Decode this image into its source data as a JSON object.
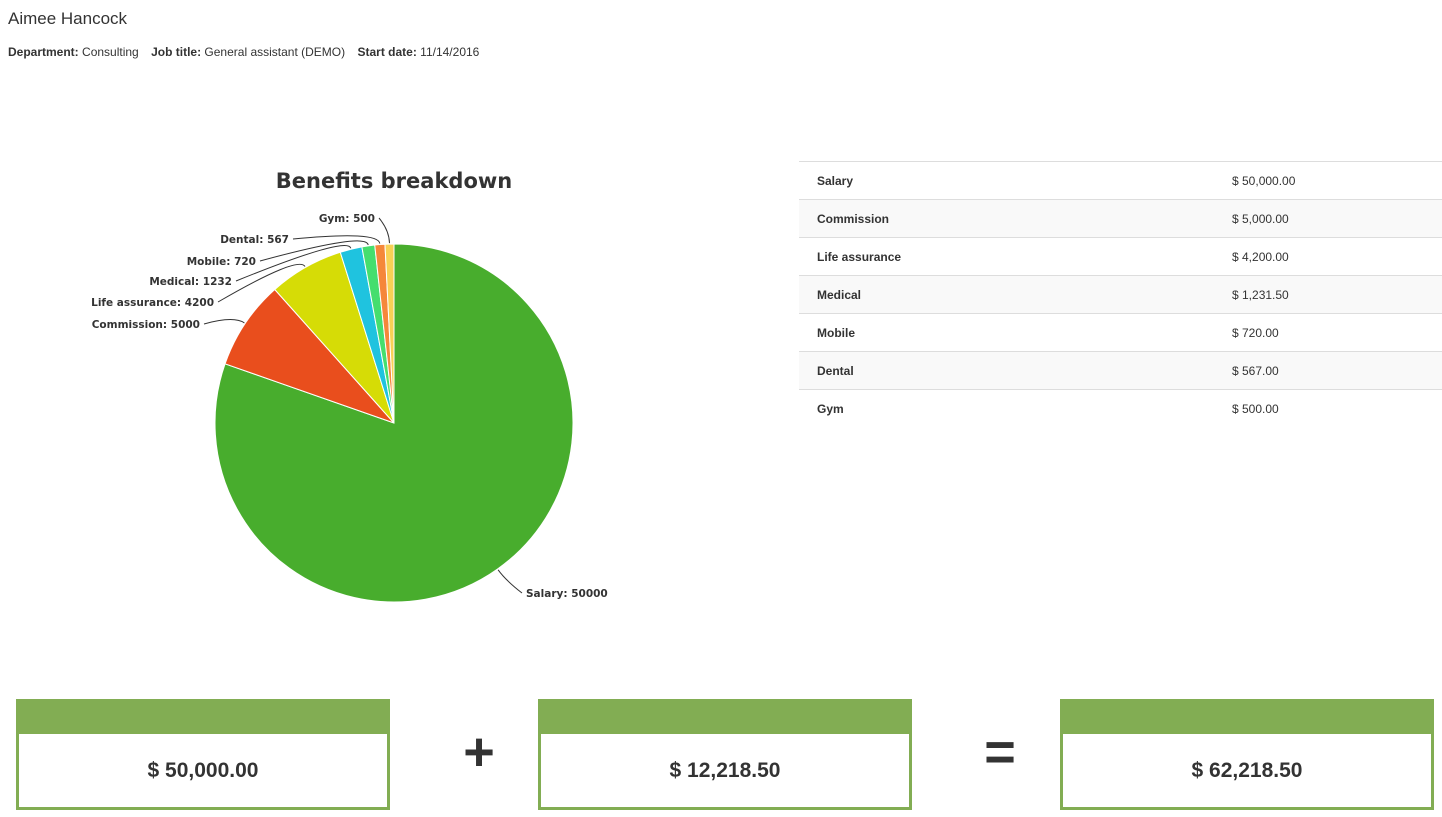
{
  "employee": {
    "name": "Aimee Hancock",
    "department_label": "Department:",
    "department": "Consulting",
    "job_title_label": "Job title:",
    "job_title": "General assistant (DEMO)",
    "start_date_label": "Start date:",
    "start_date": "11/14/2016"
  },
  "chart_data": {
    "type": "pie",
    "title": "Benefits breakdown",
    "legend": "none",
    "slices": [
      {
        "label": "Salary: 50000",
        "value": 50000,
        "color": "#48ad2d"
      },
      {
        "label": "Commission: 5000",
        "value": 5000,
        "color": "#e94e1d"
      },
      {
        "label": "Life assurance: 4200",
        "value": 4200,
        "color": "#d6dc06"
      },
      {
        "label": "Medical: 1232",
        "value": 1231.5,
        "color": "#1fc3df"
      },
      {
        "label": "Mobile: 720",
        "value": 720,
        "color": "#45de6e"
      },
      {
        "label": "Dental: 567",
        "value": 567,
        "color": "#f5873a"
      },
      {
        "label": "Gym: 500",
        "value": 500,
        "color": "#f8d155"
      }
    ]
  },
  "table": {
    "rows": [
      {
        "name": "Salary",
        "amount": "$ 50,000.00"
      },
      {
        "name": "Commission",
        "amount": "$ 5,000.00"
      },
      {
        "name": "Life assurance",
        "amount": "$ 4,200.00"
      },
      {
        "name": "Medical",
        "amount": "$ 1,231.50"
      },
      {
        "name": "Mobile",
        "amount": "$ 720.00"
      },
      {
        "name": "Dental",
        "amount": "$ 567.00"
      },
      {
        "name": "Gym",
        "amount": "$ 500.00"
      }
    ]
  },
  "totals": {
    "salary": "$ 50,000.00",
    "plus_symbol": "+",
    "benefits": "$ 12,218.50",
    "equals_symbol": "=",
    "total": "$ 62,218.50",
    "accent_color": "#82ad53"
  }
}
